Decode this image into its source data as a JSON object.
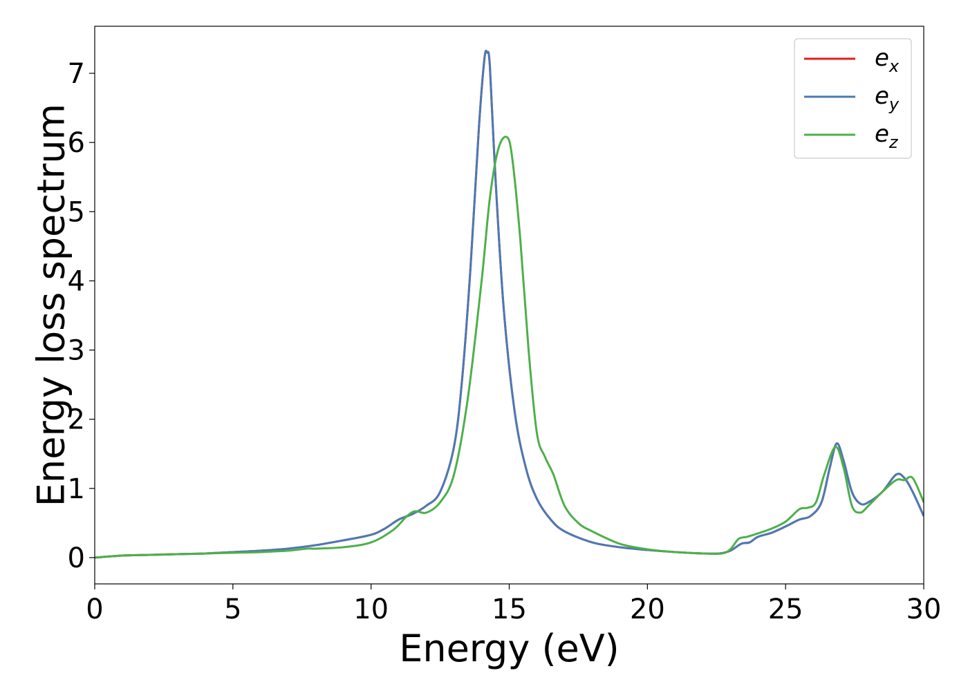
{
  "chart_data": {
    "type": "line",
    "xlabel": "Energy (eV)",
    "ylabel": "Energy loss spectrum",
    "xlim": [
      0,
      30
    ],
    "ylim": [
      -0.38,
      7.68
    ],
    "xticks": [
      0,
      5,
      10,
      15,
      20,
      25,
      30
    ],
    "yticks": [
      0,
      1,
      2,
      3,
      4,
      5,
      6,
      7
    ],
    "grid": false,
    "legend_position": "top-right",
    "series": [
      {
        "name": "e_x",
        "label_base": "e",
        "label_sub": "x",
        "color": "#e41a1c",
        "x": [
          0,
          1,
          2,
          3,
          4,
          5,
          6,
          7,
          8,
          9,
          10,
          10.5,
          11,
          11.5,
          12,
          12.5,
          13,
          13.3,
          13.6,
          13.9,
          14.1,
          14.2,
          14.3,
          14.5,
          14.8,
          15.2,
          15.6,
          16,
          16.5,
          17,
          18,
          19,
          20,
          21,
          22,
          22.6,
          23,
          23.4,
          23.7,
          24,
          24.5,
          25,
          25.5,
          25.9,
          26.3,
          26.6,
          26.85,
          27.1,
          27.4,
          27.7,
          28,
          28.5,
          29,
          29.3,
          29.6,
          30
        ],
        "y": [
          0,
          0.03,
          0.04,
          0.05,
          0.06,
          0.08,
          0.1,
          0.13,
          0.18,
          0.25,
          0.33,
          0.42,
          0.55,
          0.63,
          0.75,
          0.95,
          1.6,
          2.6,
          4.2,
          6.2,
          7.2,
          7.3,
          7.1,
          5.5,
          3.6,
          2.1,
          1.3,
          0.85,
          0.55,
          0.38,
          0.22,
          0.15,
          0.11,
          0.08,
          0.06,
          0.06,
          0.1,
          0.2,
          0.22,
          0.3,
          0.36,
          0.45,
          0.55,
          0.6,
          0.8,
          1.3,
          1.65,
          1.4,
          0.95,
          0.78,
          0.8,
          0.95,
          1.2,
          1.15,
          0.95,
          0.6
        ]
      },
      {
        "name": "e_y",
        "label_base": "e",
        "label_sub": "y",
        "color": "#4a7ab5",
        "x": [
          0,
          1,
          2,
          3,
          4,
          5,
          6,
          7,
          8,
          9,
          10,
          10.5,
          11,
          11.5,
          12,
          12.5,
          13,
          13.3,
          13.6,
          13.9,
          14.1,
          14.2,
          14.3,
          14.5,
          14.8,
          15.2,
          15.6,
          16,
          16.5,
          17,
          18,
          19,
          20,
          21,
          22,
          22.6,
          23,
          23.4,
          23.7,
          24,
          24.5,
          25,
          25.5,
          25.9,
          26.3,
          26.6,
          26.85,
          27.1,
          27.4,
          27.7,
          28,
          28.5,
          29,
          29.3,
          29.6,
          30
        ],
        "y": [
          0,
          0.03,
          0.04,
          0.05,
          0.06,
          0.08,
          0.1,
          0.13,
          0.18,
          0.25,
          0.33,
          0.42,
          0.55,
          0.63,
          0.75,
          0.95,
          1.6,
          2.6,
          4.2,
          6.2,
          7.2,
          7.3,
          7.1,
          5.5,
          3.6,
          2.1,
          1.3,
          0.85,
          0.55,
          0.38,
          0.22,
          0.15,
          0.11,
          0.08,
          0.06,
          0.06,
          0.1,
          0.2,
          0.22,
          0.3,
          0.36,
          0.45,
          0.55,
          0.6,
          0.8,
          1.3,
          1.65,
          1.4,
          0.95,
          0.78,
          0.8,
          0.95,
          1.2,
          1.15,
          0.95,
          0.6
        ]
      },
      {
        "name": "e_z",
        "label_base": "e",
        "label_sub": "z",
        "color": "#4daf4a",
        "x": [
          0,
          1,
          2,
          3,
          4,
          5,
          6,
          7,
          7.7,
          8,
          9,
          10,
          10.8,
          11.3,
          11.6,
          12,
          12.5,
          13,
          13.5,
          14,
          14.3,
          14.6,
          14.9,
          15.1,
          15.4,
          15.7,
          16,
          16.3,
          16.6,
          17,
          17.5,
          18,
          19,
          20,
          21,
          22,
          22.7,
          23,
          23.3,
          23.6,
          24,
          24.5,
          25,
          25.5,
          25.8,
          26.1,
          26.4,
          26.8,
          27.1,
          27.4,
          27.7,
          28,
          28.5,
          29,
          29.3,
          29.6,
          30
        ],
        "y": [
          0,
          0.03,
          0.04,
          0.05,
          0.06,
          0.07,
          0.08,
          0.1,
          0.13,
          0.13,
          0.15,
          0.22,
          0.4,
          0.6,
          0.67,
          0.65,
          0.8,
          1.2,
          2.3,
          4.0,
          5.2,
          5.9,
          6.08,
          5.8,
          4.6,
          3.0,
          1.8,
          1.45,
          1.2,
          0.75,
          0.5,
          0.38,
          0.2,
          0.12,
          0.08,
          0.06,
          0.06,
          0.12,
          0.27,
          0.3,
          0.35,
          0.42,
          0.52,
          0.7,
          0.72,
          0.8,
          1.2,
          1.6,
          1.3,
          0.75,
          0.65,
          0.75,
          0.95,
          1.12,
          1.12,
          1.15,
          0.8
        ]
      }
    ]
  }
}
